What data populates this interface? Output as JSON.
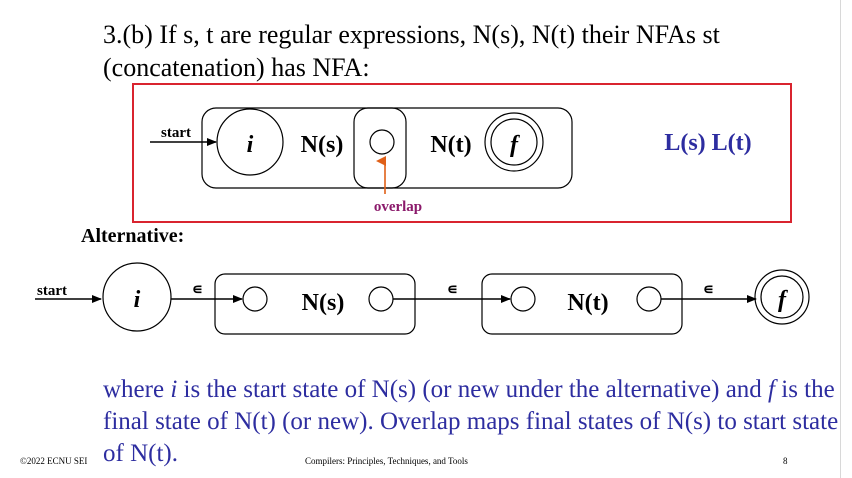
{
  "slide": {
    "title": "3.(b) If s, t are regular expressions, N(s), N(t) their NFAs st (concatenation) has NFA:",
    "bottom_text_html": "where <i>i</i> is the start state of N(s) (or new under the alternative) and <i>f</i> is the final state of N(t) (or new).  Overlap maps final states of N(s) to start state of N(t).",
    "footer_left": "©2022 ECNU SEI",
    "footer_mid": "Compilers: Principles, Techniques, and Tools",
    "page_number": "8"
  },
  "diagram1": {
    "start_label": "start",
    "state_i": "i",
    "ns_label": "N(s)",
    "nt_label": "N(t)",
    "state_f": "f",
    "overlap_label": "overlap",
    "language_label": "L(s) L(t)",
    "border_color": "#d9242f",
    "overlap_color": "#e06018",
    "overlap_text_color": "#8b1a6b",
    "language_color": "#2d2da0"
  },
  "alternative": {
    "heading": "Alternative:",
    "start_label": "start",
    "state_i": "i",
    "epsilon": "∊",
    "ns_label": "N(s)",
    "nt_label": "N(t)",
    "state_f": "f"
  }
}
